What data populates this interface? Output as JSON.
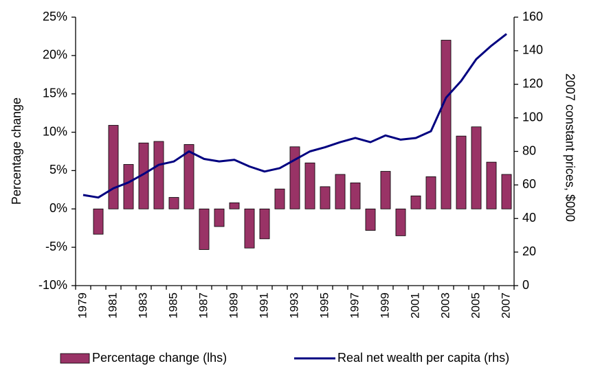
{
  "chart_data": {
    "type": "bar",
    "categories": [
      "1979",
      null,
      "1981",
      null,
      "1983",
      null,
      "1985",
      null,
      "1987",
      null,
      "1989",
      null,
      "1991",
      null,
      "1993",
      null,
      "1995",
      null,
      "1997",
      null,
      "1999",
      null,
      "2001",
      null,
      "2003",
      null,
      "2005",
      null,
      "2007"
    ],
    "ylabel": "Percentage change",
    "y2label": "2007 constant prices, $000",
    "ylim": [
      -10,
      25
    ],
    "yticks": [
      {
        "value": -10,
        "label": "-10%"
      },
      {
        "value": -5,
        "label": "-5%"
      },
      {
        "value": 0,
        "label": "0%"
      },
      {
        "value": 5,
        "label": "5%"
      },
      {
        "value": 10,
        "label": "10%"
      },
      {
        "value": 15,
        "label": "15%"
      },
      {
        "value": 20,
        "label": "20%"
      },
      {
        "value": 25,
        "label": "25%"
      }
    ],
    "y2lim": [
      0,
      160
    ],
    "y2ticks": [
      0,
      20,
      40,
      60,
      80,
      100,
      120,
      140,
      160
    ],
    "series": [
      {
        "name": "Percentage change (lhs)",
        "type": "bar",
        "color": "#993366",
        "values": [
          null,
          -3.3,
          10.9,
          5.8,
          8.6,
          8.8,
          1.5,
          8.4,
          -5.3,
          -2.3,
          0.8,
          -5.1,
          -3.9,
          2.6,
          8.1,
          6.0,
          2.9,
          4.5,
          3.4,
          -2.8,
          4.9,
          -3.5,
          1.7,
          4.2,
          22.0,
          9.5,
          10.7,
          6.1,
          4.5
        ]
      },
      {
        "name": "Real net wealth per capita (rhs)",
        "type": "line",
        "axis": "y2",
        "color": "#000080",
        "values": [
          54,
          52.5,
          58,
          61.5,
          66.5,
          72,
          74,
          80,
          75.5,
          74,
          75,
          71,
          68,
          70,
          75,
          80,
          82.5,
          85.5,
          88,
          85.5,
          89.5,
          87,
          88,
          92,
          112,
          122,
          135,
          143,
          150
        ]
      }
    ]
  }
}
